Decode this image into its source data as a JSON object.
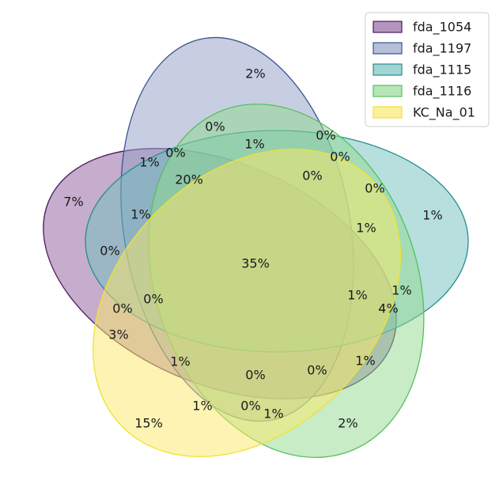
{
  "diagram": {
    "type": "venn-5",
    "sets": [
      {
        "name": "fda_1054",
        "fill": "#8e5a9b",
        "stroke": "#4b1a5e"
      },
      {
        "name": "fda_1197",
        "fill": "#8f9dc4",
        "stroke": "#3b5491"
      },
      {
        "name": "fda_1115",
        "fill": "#6fbfbd",
        "stroke": "#268e8c"
      },
      {
        "name": "fda_1116",
        "fill": "#8fd98d",
        "stroke": "#55bf5f"
      },
      {
        "name": "KC_Na_01",
        "fill": "#fbe866",
        "stroke": "#efe233"
      }
    ],
    "regions": [
      "7%",
      "2%",
      "1%",
      "2%",
      "15%",
      "1%",
      "0%",
      "0%",
      "1%",
      "0%",
      "20%",
      "1%",
      "1%",
      "0%",
      "1%",
      "4%",
      "0%",
      "3%",
      "0%",
      "1%",
      "0%",
      "0%",
      "1%",
      "0%",
      "1%",
      "1%",
      "0%",
      "0%",
      "0%",
      "1%",
      "35%"
    ]
  }
}
